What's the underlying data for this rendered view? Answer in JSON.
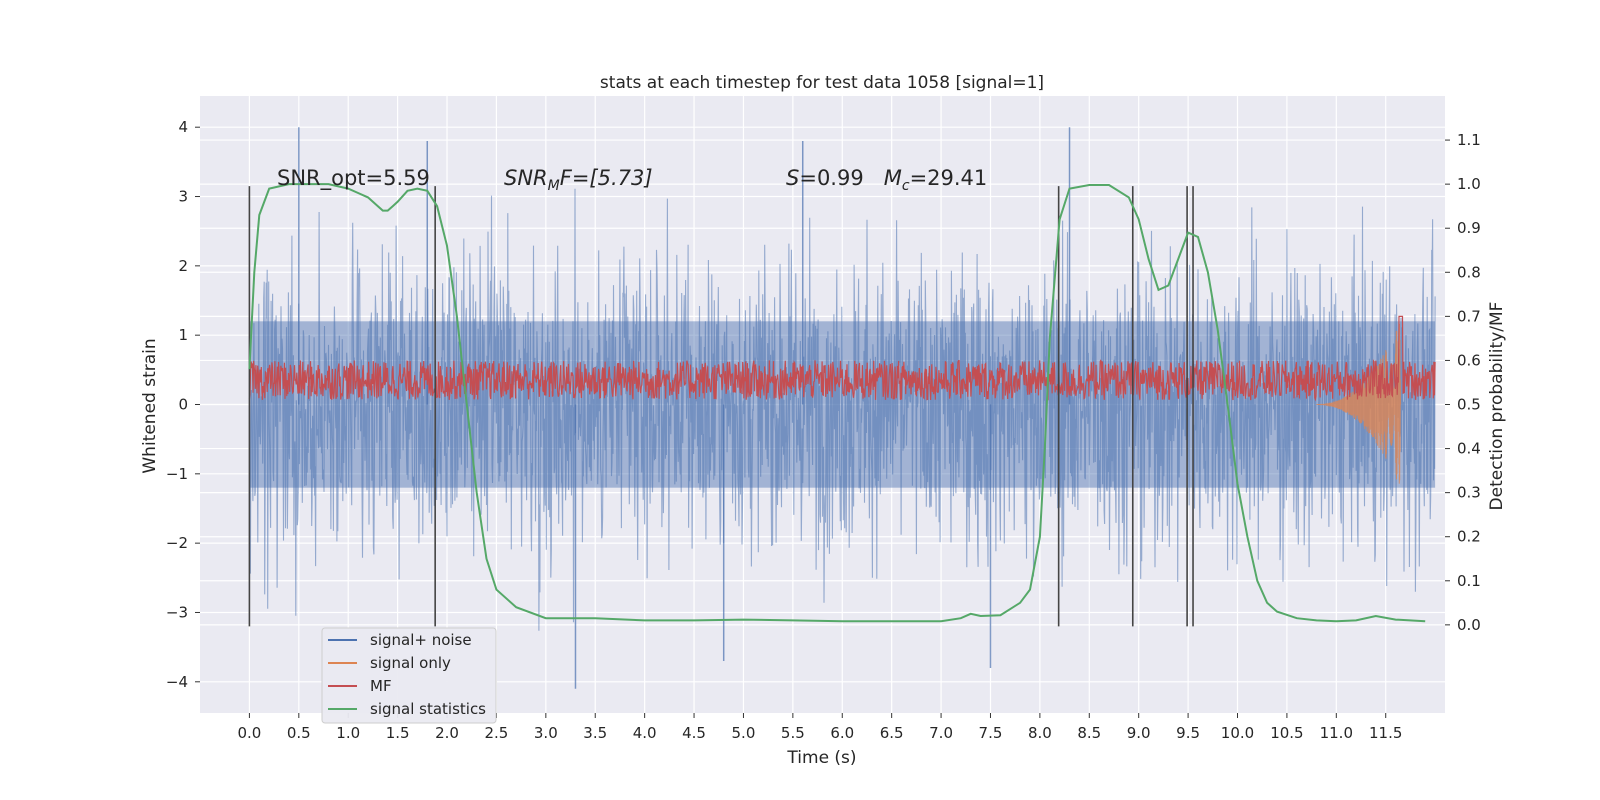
{
  "chart_data": {
    "type": "line",
    "title": "stats at each timestep for test data 1058 [signal=1]",
    "xlabel": "Time (s)",
    "ylabel_left": "Whitened strain",
    "ylabel_right": "Detection probability/MF",
    "xlim": [
      -0.5,
      12.1
    ],
    "ylim_left": [
      -4.45,
      4.45
    ],
    "ylim_right": [
      -0.2,
      1.2
    ],
    "grid": true,
    "legend_placement": "lower-left",
    "x_ticks": [
      "0.0",
      "0.5",
      "1.0",
      "1.5",
      "2.0",
      "2.5",
      "3.0",
      "3.5",
      "4.0",
      "4.5",
      "5.0",
      "5.5",
      "6.0",
      "6.5",
      "7.0",
      "7.5",
      "8.0",
      "8.5",
      "9.0",
      "9.5",
      "10.0",
      "10.5",
      "11.0",
      "11.5"
    ],
    "y_ticks_left": [
      "4",
      "3",
      "2",
      "1",
      "0",
      "−1",
      "−2",
      "−3",
      "−4"
    ],
    "y_ticks_right": [
      "1.1",
      "1.0",
      "0.9",
      "0.8",
      "0.7",
      "0.6",
      "0.5",
      "0.4",
      "0.3",
      "0.2",
      "0.1",
      "0.0"
    ],
    "annotations": [
      {
        "id": "snr-opt",
        "text": "SNR_opt=5.59",
        "x": 0.2,
        "y_right": 1.0
      },
      {
        "id": "snr-mf",
        "parts": [
          "SNR",
          "M",
          "F=[5.73]"
        ],
        "x": 2.6,
        "y_right": 1.0
      },
      {
        "id": "s-mc",
        "parts": [
          "S",
          "=0.99   ",
          "M",
          "c",
          "=29.41"
        ],
        "x": 5.6,
        "y_right": 1.0
      }
    ],
    "vertical_markers": [
      0.0,
      1.88,
      8.19,
      8.94,
      9.49,
      9.55
    ],
    "series": [
      {
        "name": "signal+ noise",
        "color": "#4c72b0",
        "axis": "left",
        "kind": "noise",
        "x_range": [
          0,
          12
        ],
        "envelope": [
          2.0,
          -2.0
        ],
        "peaks": [
          {
            "x": 0.5,
            "y": 4.0
          },
          {
            "x": 1.8,
            "y": 3.8
          },
          {
            "x": 5.6,
            "y": 3.8
          },
          {
            "x": 8.3,
            "y": 4.0
          },
          {
            "x": 3.3,
            "y": -4.1
          },
          {
            "x": 7.5,
            "y": -3.8
          },
          {
            "x": 4.8,
            "y": -3.7
          }
        ]
      },
      {
        "name": "signal only",
        "color": "#dd8452",
        "axis": "left",
        "kind": "chirp",
        "x_range": [
          10.8,
          11.65
        ],
        "amplitude_end": 1.2
      },
      {
        "name": "MF",
        "color": "#c44e52",
        "axis": "right",
        "kind": "noise-band",
        "x_range": [
          0,
          12
        ],
        "band": [
          0.51,
          0.6
        ],
        "spike": {
          "x": 11.65,
          "y": 0.7
        }
      },
      {
        "name": "signal statistics",
        "color": "#55a868",
        "axis": "right",
        "kind": "curve",
        "x": [
          0,
          0.05,
          0.1,
          0.2,
          0.4,
          0.6,
          0.8,
          1.0,
          1.1,
          1.2,
          1.3,
          1.35,
          1.4,
          1.45,
          1.5,
          1.6,
          1.7,
          1.8,
          1.9,
          2.0,
          2.1,
          2.2,
          2.3,
          2.4,
          2.5,
          2.7,
          3.0,
          3.5,
          4.0,
          4.5,
          5.0,
          5.5,
          6.0,
          6.5,
          7.0,
          7.2,
          7.3,
          7.4,
          7.6,
          7.8,
          7.9,
          8.0,
          8.05,
          8.1,
          8.2,
          8.3,
          8.5,
          8.7,
          8.9,
          9.0,
          9.1,
          9.2,
          9.3,
          9.4,
          9.5,
          9.6,
          9.7,
          9.8,
          9.9,
          10.0,
          10.1,
          10.2,
          10.3,
          10.4,
          10.6,
          10.8,
          11.0,
          11.2,
          11.4,
          11.6,
          11.9
        ],
        "y": [
          0.58,
          0.8,
          0.93,
          0.99,
          1.0,
          1.0,
          1.0,
          0.99,
          0.98,
          0.97,
          0.95,
          0.94,
          0.94,
          0.95,
          0.96,
          0.985,
          0.99,
          0.985,
          0.95,
          0.86,
          0.7,
          0.5,
          0.3,
          0.15,
          0.08,
          0.04,
          0.015,
          0.015,
          0.01,
          0.01,
          0.012,
          0.01,
          0.008,
          0.008,
          0.008,
          0.015,
          0.025,
          0.02,
          0.022,
          0.05,
          0.08,
          0.2,
          0.4,
          0.65,
          0.92,
          0.99,
          0.998,
          0.998,
          0.97,
          0.92,
          0.83,
          0.76,
          0.77,
          0.83,
          0.89,
          0.88,
          0.8,
          0.67,
          0.5,
          0.32,
          0.2,
          0.1,
          0.05,
          0.03,
          0.015,
          0.01,
          0.008,
          0.01,
          0.02,
          0.012,
          0.008
        ]
      }
    ]
  }
}
